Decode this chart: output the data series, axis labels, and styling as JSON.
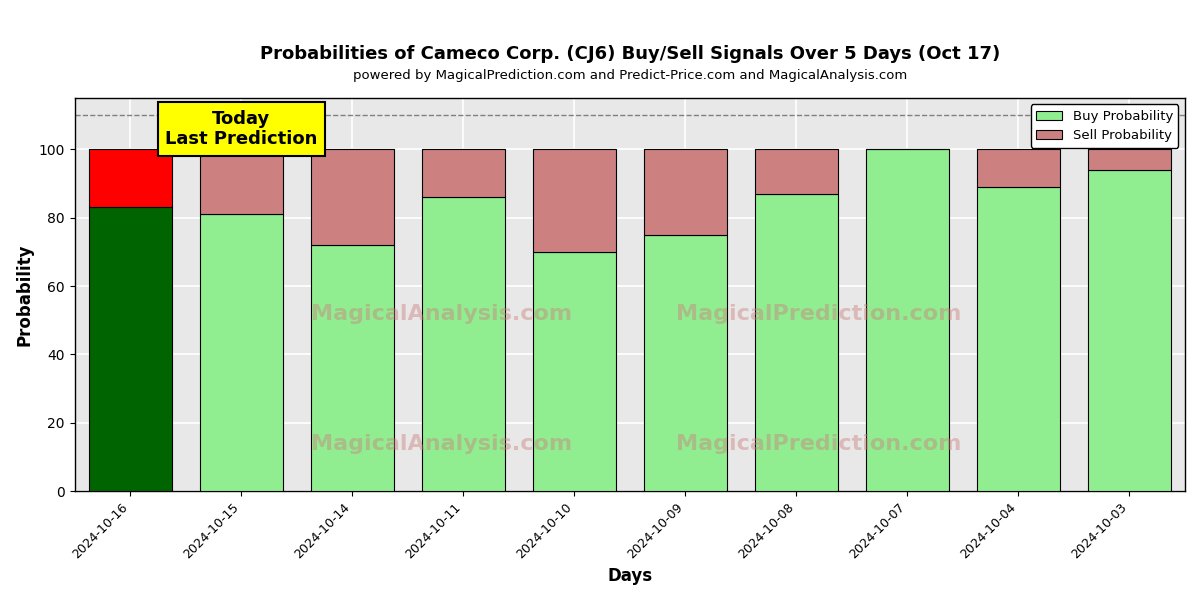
{
  "title": "Probabilities of Cameco Corp. (CJ6) Buy/Sell Signals Over 5 Days (Oct 17)",
  "subtitle": "powered by MagicalPrediction.com and Predict-Price.com and MagicalAnalysis.com",
  "xlabel": "Days",
  "ylabel": "Probability",
  "dates": [
    "2024-10-16",
    "2024-10-15",
    "2024-10-14",
    "2024-10-11",
    "2024-10-10",
    "2024-10-09",
    "2024-10-08",
    "2024-10-07",
    "2024-10-04",
    "2024-10-03"
  ],
  "buy_values": [
    83,
    81,
    72,
    86,
    70,
    75,
    87,
    100,
    89,
    94
  ],
  "sell_values": [
    17,
    19,
    28,
    14,
    30,
    25,
    13,
    0,
    11,
    6
  ],
  "today_buy_color": "#006400",
  "today_sell_color": "#ff0000",
  "buy_color": "#90EE90",
  "sell_color": "#CD8080",
  "today_annotation": "Today\nLast Prediction",
  "ylim": [
    0,
    115
  ],
  "yticks": [
    0,
    20,
    40,
    60,
    80,
    100
  ],
  "dashed_line_y": 110,
  "watermark1": "MagicalAnalysis.com",
  "watermark2": "MagicalPrediction.com",
  "bg_color": "#e8e8e8"
}
